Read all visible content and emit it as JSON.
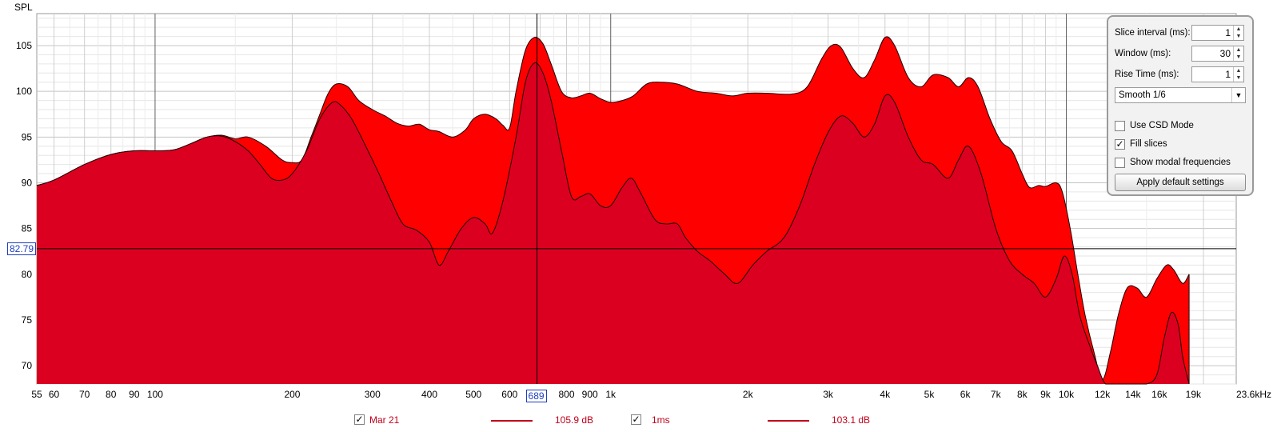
{
  "chart_data": {
    "type": "area",
    "ylabel": "SPL",
    "x_unit": "Hz",
    "x_scale": "log",
    "xlim": [
      55,
      23600
    ],
    "ylim": [
      68,
      108.5
    ],
    "y_ticks": [
      70,
      75,
      80,
      85,
      90,
      95,
      100,
      105
    ],
    "y_tick_labels": [
      "70",
      "75",
      "80",
      "85",
      "90",
      "95",
      "100",
      "105"
    ],
    "x_ticks": [
      55,
      60,
      70,
      80,
      90,
      100,
      200,
      300,
      400,
      500,
      600,
      689,
      800,
      900,
      1000,
      2000,
      3000,
      4000,
      5000,
      6000,
      7000,
      8000,
      9000,
      10000,
      12000,
      14000,
      16000,
      19000,
      23600
    ],
    "x_tick_labels": [
      "55",
      "60",
      "70",
      "80",
      "90",
      "100",
      "200",
      "300",
      "400",
      "500",
      "600",
      "689",
      "800",
      "900",
      "1k",
      "2k",
      "3k",
      "4k",
      "5k",
      "6k",
      "7k",
      "8k",
      "9k",
      "10k",
      "12k",
      "14k",
      "16k",
      "19k",
      "23.6kHz"
    ],
    "x_tick_colors": {
      "12000": "#7a7a7a",
      "14000": "#7a7a7a",
      "16000": "#7a7a7a",
      "19000": "#7a7a7a"
    },
    "grid": true,
    "cursor": {
      "x": 689,
      "y": 82.79,
      "x_label": "689",
      "y_label": "82.79"
    },
    "series": [
      {
        "name": "Mar 21",
        "peak_label": "105.9 dB",
        "color": "#ff0000",
        "line_color": "#c0001a",
        "points": [
          [
            55,
            89.7
          ],
          [
            60,
            90.3
          ],
          [
            70,
            92.0
          ],
          [
            80,
            93.1
          ],
          [
            90,
            93.5
          ],
          [
            100,
            93.5
          ],
          [
            110,
            93.6
          ],
          [
            120,
            94.3
          ],
          [
            130,
            95.0
          ],
          [
            140,
            95.2
          ],
          [
            150,
            94.8
          ],
          [
            160,
            95.0
          ],
          [
            175,
            94.0
          ],
          [
            190,
            92.5
          ],
          [
            200,
            92.2
          ],
          [
            210,
            92.5
          ],
          [
            220,
            95.0
          ],
          [
            230,
            97.5
          ],
          [
            240,
            99.8
          ],
          [
            250,
            100.8
          ],
          [
            265,
            100.5
          ],
          [
            280,
            99.0
          ],
          [
            300,
            98.0
          ],
          [
            320,
            97.3
          ],
          [
            340,
            96.5
          ],
          [
            360,
            96.2
          ],
          [
            380,
            96.4
          ],
          [
            400,
            95.8
          ],
          [
            420,
            95.6
          ],
          [
            450,
            95.0
          ],
          [
            480,
            95.8
          ],
          [
            500,
            97.0
          ],
          [
            530,
            97.5
          ],
          [
            560,
            97.0
          ],
          [
            580,
            96.3
          ],
          [
            600,
            96.0
          ],
          [
            620,
            100.0
          ],
          [
            650,
            104.5
          ],
          [
            680,
            105.9
          ],
          [
            710,
            105.2
          ],
          [
            740,
            103.0
          ],
          [
            780,
            100.0
          ],
          [
            820,
            99.3
          ],
          [
            860,
            99.5
          ],
          [
            900,
            99.8
          ],
          [
            950,
            99.2
          ],
          [
            1000,
            98.8
          ],
          [
            1060,
            99.0
          ],
          [
            1120,
            99.5
          ],
          [
            1200,
            100.8
          ],
          [
            1280,
            101.0
          ],
          [
            1400,
            100.8
          ],
          [
            1550,
            100.0
          ],
          [
            1700,
            99.8
          ],
          [
            1850,
            99.5
          ],
          [
            2000,
            99.8
          ],
          [
            2200,
            99.8
          ],
          [
            2500,
            99.7
          ],
          [
            2700,
            100.5
          ],
          [
            2900,
            103.5
          ],
          [
            3050,
            105.0
          ],
          [
            3200,
            104.8
          ],
          [
            3400,
            102.5
          ],
          [
            3600,
            101.5
          ],
          [
            3800,
            103.5
          ],
          [
            4000,
            105.9
          ],
          [
            4200,
            105.0
          ],
          [
            4500,
            101.5
          ],
          [
            4800,
            100.5
          ],
          [
            5100,
            101.8
          ],
          [
            5500,
            101.5
          ],
          [
            5800,
            100.5
          ],
          [
            6100,
            101.5
          ],
          [
            6400,
            100.5
          ],
          [
            6800,
            97.0
          ],
          [
            7200,
            94.5
          ],
          [
            7600,
            93.5
          ],
          [
            8000,
            91.0
          ],
          [
            8300,
            89.5
          ],
          [
            8700,
            89.7
          ],
          [
            9000,
            89.6
          ],
          [
            9500,
            90.0
          ],
          [
            9800,
            89.0
          ],
          [
            10200,
            85.0
          ],
          [
            10600,
            80.0
          ],
          [
            11000,
            75.5
          ],
          [
            11500,
            71.5
          ],
          [
            12000,
            68.5
          ],
          [
            12500,
            71.5
          ],
          [
            13000,
            75.5
          ],
          [
            13600,
            78.5
          ],
          [
            14300,
            78.5
          ],
          [
            15000,
            77.5
          ],
          [
            15800,
            79.5
          ],
          [
            16600,
            81.0
          ],
          [
            17200,
            80.5
          ],
          [
            18000,
            79.0
          ],
          [
            18600,
            80.0
          ]
        ]
      },
      {
        "name": "1ms",
        "peak_label": "103.1 dB",
        "color": "#dc0020",
        "line_color": "#c0001a",
        "points": [
          [
            55,
            89.7
          ],
          [
            60,
            90.3
          ],
          [
            70,
            92.0
          ],
          [
            80,
            93.1
          ],
          [
            90,
            93.5
          ],
          [
            100,
            93.5
          ],
          [
            110,
            93.6
          ],
          [
            120,
            94.3
          ],
          [
            130,
            95.0
          ],
          [
            140,
            95.1
          ],
          [
            150,
            94.5
          ],
          [
            160,
            93.5
          ],
          [
            170,
            92.0
          ],
          [
            180,
            90.5
          ],
          [
            190,
            90.3
          ],
          [
            200,
            91.0
          ],
          [
            215,
            93.5
          ],
          [
            230,
            97.0
          ],
          [
            245,
            98.8
          ],
          [
            255,
            98.5
          ],
          [
            270,
            97.0
          ],
          [
            290,
            94.0
          ],
          [
            310,
            91.0
          ],
          [
            330,
            88.0
          ],
          [
            350,
            85.5
          ],
          [
            375,
            84.8
          ],
          [
            400,
            83.5
          ],
          [
            420,
            81.0
          ],
          [
            440,
            82.5
          ],
          [
            470,
            85.0
          ],
          [
            500,
            86.2
          ],
          [
            530,
            85.5
          ],
          [
            550,
            84.5
          ],
          [
            580,
            88.0
          ],
          [
            620,
            95.0
          ],
          [
            650,
            101.0
          ],
          [
            680,
            103.1
          ],
          [
            710,
            102.0
          ],
          [
            740,
            99.0
          ],
          [
            780,
            93.5
          ],
          [
            820,
            88.5
          ],
          [
            860,
            88.5
          ],
          [
            900,
            88.8
          ],
          [
            950,
            87.5
          ],
          [
            1000,
            87.5
          ],
          [
            1060,
            89.5
          ],
          [
            1110,
            90.5
          ],
          [
            1160,
            89.0
          ],
          [
            1250,
            86.0
          ],
          [
            1320,
            85.5
          ],
          [
            1400,
            85.5
          ],
          [
            1460,
            84.0
          ],
          [
            1550,
            82.5
          ],
          [
            1650,
            81.5
          ],
          [
            1780,
            80.0
          ],
          [
            1900,
            79.0
          ],
          [
            2050,
            81.0
          ],
          [
            2200,
            82.5
          ],
          [
            2400,
            84.0
          ],
          [
            2600,
            87.5
          ],
          [
            2800,
            92.0
          ],
          [
            3000,
            95.5
          ],
          [
            3200,
            97.3
          ],
          [
            3400,
            96.5
          ],
          [
            3600,
            95.0
          ],
          [
            3800,
            96.5
          ],
          [
            4000,
            99.5
          ],
          [
            4200,
            98.8
          ],
          [
            4500,
            95.0
          ],
          [
            4800,
            92.5
          ],
          [
            5100,
            92.0
          ],
          [
            5500,
            90.5
          ],
          [
            5800,
            92.5
          ],
          [
            6100,
            94.0
          ],
          [
            6500,
            91.0
          ],
          [
            7000,
            85.0
          ],
          [
            7500,
            81.5
          ],
          [
            8000,
            80.0
          ],
          [
            8500,
            79.0
          ],
          [
            9000,
            77.5
          ],
          [
            9500,
            79.5
          ],
          [
            9900,
            82.0
          ],
          [
            10300,
            80.0
          ],
          [
            10700,
            75.5
          ],
          [
            11200,
            72.5
          ],
          [
            11700,
            70.0
          ],
          [
            12200,
            67.5
          ],
          [
            13000,
            67.0
          ],
          [
            14000,
            67.0
          ],
          [
            15000,
            67.0
          ],
          [
            15800,
            69.0
          ],
          [
            16400,
            73.0
          ],
          [
            17000,
            75.8
          ],
          [
            17600,
            74.5
          ],
          [
            18000,
            71.0
          ],
          [
            18600,
            68.0
          ]
        ]
      }
    ]
  },
  "panel": {
    "slice_interval_label": "Slice interval (ms):",
    "slice_interval_value": "1",
    "window_label": "Window (ms):",
    "window_value": "30",
    "rise_time_label": "Rise Time (ms):",
    "rise_time_value": "1",
    "smoothing_value": "Smooth 1/6",
    "use_csd_label": "Use CSD Mode",
    "use_csd_checked": false,
    "fill_slices_label": "Fill slices",
    "fill_slices_checked": true,
    "show_modal_label": "Show modal frequencies",
    "show_modal_checked": false,
    "apply_label": "Apply default settings"
  },
  "legend": [
    {
      "label": "Mar 21",
      "checked": true,
      "value": "105.9 dB",
      "color": "#c0001a"
    },
    {
      "label": "1ms",
      "checked": true,
      "value": "103.1 dB",
      "color": "#c0001a"
    }
  ]
}
